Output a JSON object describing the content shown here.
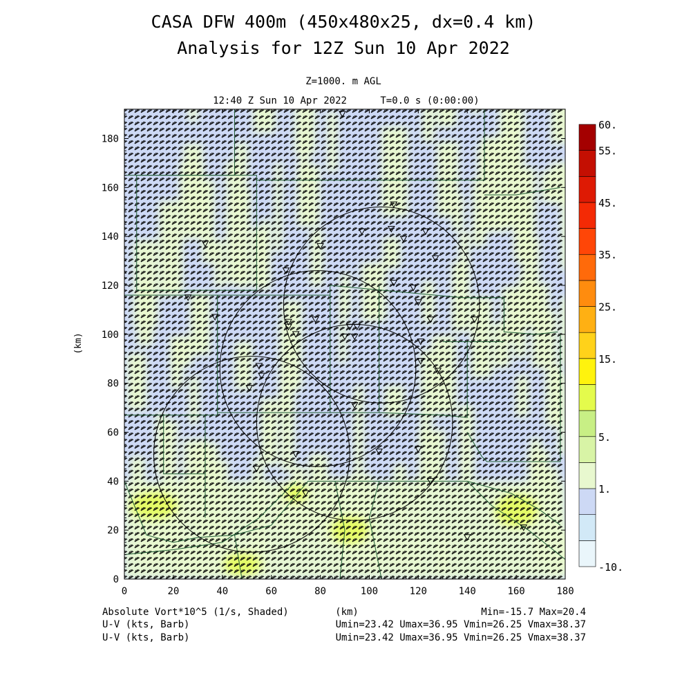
{
  "header": {
    "title_line1": "CASA DFW 400m (450x480x25, dx=0.4 km)",
    "title_line2": "Analysis for 12Z Sun 10 Apr 2022",
    "level": "Z=1000. m AGL",
    "valid_time": "12:40 Z Sun 10 Apr 2022",
    "forecast_time": "T=0.0 s (0:00:00)"
  },
  "footer": {
    "field_label": "Absolute Vort*10^5 (1/s, Shaded)",
    "xunit": "(km)",
    "minmax": "Min=-15.7 Max=20.4",
    "wind1_label": "U-V (kts, Barb)",
    "wind1_stats": "Umin=23.42 Umax=36.95 Vmin=26.25 Vmax=38.37",
    "wind2_label": "U-V (kts, Barb)",
    "wind2_stats": "Umin=23.42 Umax=36.95 Vmin=26.25 Vmax=38.37"
  },
  "chart_data": {
    "type": "heatmap",
    "xlabel": "(km)",
    "ylabel": "(km)",
    "xlim": [
      0,
      180
    ],
    "ylim": [
      0,
      192
    ],
    "xticks": [
      "0",
      "20",
      "40",
      "60",
      "80",
      "100",
      "120",
      "140",
      "160",
      "180"
    ],
    "yticks": [
      "0",
      "20",
      "40",
      "60",
      "80",
      "100",
      "120",
      "140",
      "160",
      "180"
    ],
    "field": "Absolute Vort*10^5 (1/s)",
    "field_min": -15.7,
    "field_max": 20.4,
    "colorbar": {
      "ticks": [
        "-10.",
        "1.",
        "5.",
        "15.",
        "25.",
        "35.",
        "45.",
        "55.",
        "60."
      ],
      "colors": [
        "#eaf6fb",
        "#d2e9f7",
        "#cdd9f5",
        "#e8f8cf",
        "#d8f4a6",
        "#c8ef85",
        "#e4fb4c",
        "#fff30d",
        "#ffd21a",
        "#ffb013",
        "#ff8c0e",
        "#ff6a0a",
        "#ff4607",
        "#f42a05",
        "#de1a04",
        "#c40f02",
        "#a40000"
      ]
    },
    "wind": {
      "units": "kts",
      "umin": 23.42,
      "umax": 36.95,
      "vmin": 26.25,
      "vmax": 38.37
    },
    "radar_rings": [
      {
        "x": 105,
        "y": 112,
        "r": 40
      },
      {
        "x": 79,
        "y": 86,
        "r": 40
      },
      {
        "x": 94,
        "y": 64,
        "r": 40
      },
      {
        "x": 52,
        "y": 51,
        "r": 40
      }
    ],
    "stations": [
      [
        89,
        190
      ],
      [
        110,
        153
      ],
      [
        97,
        142
      ],
      [
        109,
        143
      ],
      [
        114,
        139
      ],
      [
        123,
        142
      ],
      [
        80,
        136
      ],
      [
        127,
        131
      ],
      [
        33,
        137
      ],
      [
        66,
        126
      ],
      [
        110,
        121
      ],
      [
        118,
        119
      ],
      [
        26,
        115
      ],
      [
        37,
        107
      ],
      [
        67,
        105
      ],
      [
        78,
        106
      ],
      [
        120,
        113
      ],
      [
        92,
        103
      ],
      [
        95,
        103
      ],
      [
        125,
        106
      ],
      [
        67,
        103
      ],
      [
        70,
        100
      ],
      [
        143,
        106
      ],
      [
        90,
        99
      ],
      [
        94,
        99
      ],
      [
        121,
        97
      ],
      [
        121,
        89
      ],
      [
        55,
        87
      ],
      [
        56,
        83
      ],
      [
        51,
        78
      ],
      [
        128,
        85
      ],
      [
        94,
        71
      ],
      [
        70,
        51
      ],
      [
        104,
        52
      ],
      [
        120,
        53
      ],
      [
        54,
        45
      ],
      [
        125,
        40
      ],
      [
        74,
        35
      ],
      [
        140,
        17
      ],
      [
        163,
        21
      ]
    ]
  },
  "colors": {
    "background_light": "#cdd9f5",
    "field_green": "#e8f8cf",
    "yellow": "#e4fb4c",
    "boundary": "#1e5a32",
    "barb": "#000000"
  }
}
